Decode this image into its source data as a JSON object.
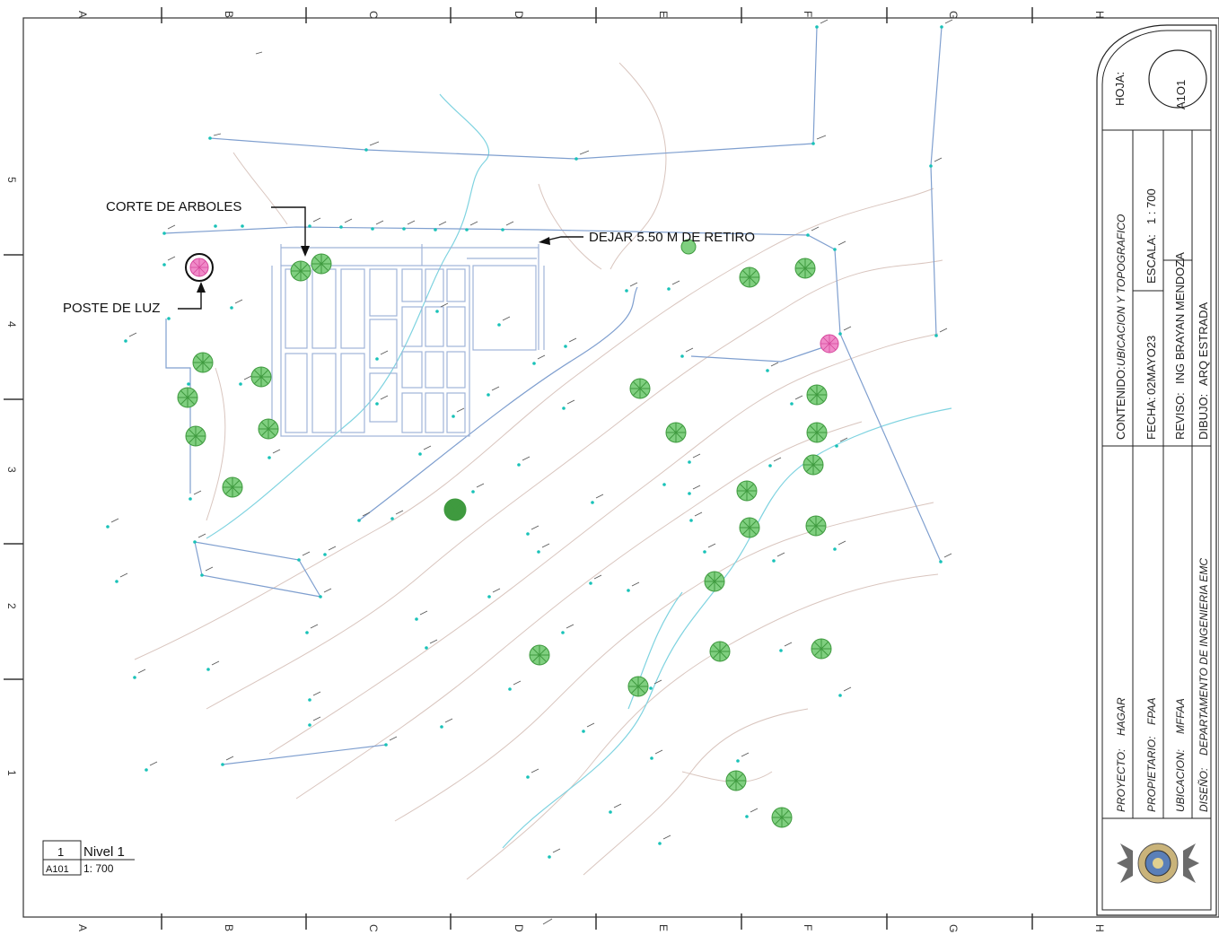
{
  "drawing": {
    "columns": [
      "A",
      "B",
      "C",
      "D",
      "E",
      "F",
      "G",
      "H"
    ],
    "rows": [
      "5",
      "4",
      "3",
      "2",
      "1"
    ],
    "annotations": {
      "tree_cut": "CORTE DE ARBOLES",
      "setback": "DEJAR 5.50 M DE RETIRO",
      "light_pole": "POSTE DE LUZ"
    },
    "view_tag": {
      "number": "1",
      "name": "Nivel 1",
      "sheet_ref": "A101",
      "scale": "1: 700"
    },
    "colors": {
      "survey_line": "#7f9fcf",
      "contour": "#d9c5be",
      "stream": "#7fd3e0",
      "tree": "#3f9a3f",
      "pole": "#d6489c",
      "point": "#19c2b8"
    }
  },
  "title_block": {
    "sheet_label": "HOJA:",
    "sheet_number": "A1O1",
    "contenido_label": "CONTENIDO:",
    "contenido_value": "UBICACION Y TOPOGRAFICO",
    "fecha_label": "FECHA:",
    "fecha_value": "02MAYO23",
    "escala_label": "ESCALA:",
    "escala_value": "1 : 700",
    "reviso_label": "REVISO:",
    "reviso_value": "ING BRAYAN MENDOZA",
    "dibujo_label": "DIBUJO:",
    "dibujo_value": "ARQ ESTRADA",
    "proyecto_label": "PROYECTO:",
    "proyecto_value": "HAGAR",
    "propietario_label": "PROPIETARIO:",
    "propietario_value": "FPAA",
    "ubicacion_label": "UBICACION:",
    "ubicacion_value": "MFFAA",
    "diseno_label": "DISEÑO:",
    "diseno_value": "DEPARTAMENTO DE INGENIERIA EMC"
  }
}
